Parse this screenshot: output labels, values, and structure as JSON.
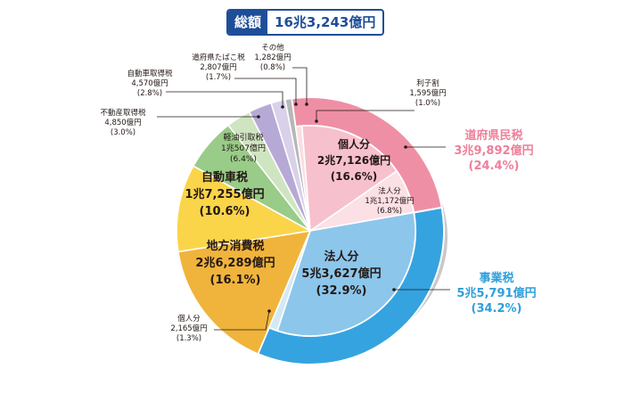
{
  "header": {
    "total_label": "総額",
    "total_value": "16兆3,243億円"
  },
  "chart_data": {
    "type": "pie",
    "unit": "億円",
    "groups": [
      {
        "id": "pref",
        "name": "道府県民税",
        "amount_label": "3兆9,892億円",
        "percent_label": "(24.4%)",
        "value": 39892,
        "color": "#ef8fa5",
        "label_color": "#ee7f9a"
      },
      {
        "id": "business",
        "name": "事業税",
        "amount_label": "5兆5,791億円",
        "percent_label": "(34.2%)",
        "value": 55791,
        "color": "#35a3e0",
        "label_color": "#2f9fdb"
      }
    ],
    "slices": [
      {
        "name": "利子割",
        "amount": "1,595億円",
        "percent": "(1.0%)",
        "value": 1595,
        "percent_value": 1.0,
        "group": "pref",
        "color": "#fbdde4"
      },
      {
        "name": "個人分",
        "amount": "2兆7,126億円",
        "percent": "(16.6%)",
        "value": 27126,
        "percent_value": 16.6,
        "group": "pref",
        "color": "#f7c0cd"
      },
      {
        "name": "法人分",
        "amount": "1兆1,172億円",
        "percent": "(6.8%)",
        "value": 11172,
        "percent_value": 6.8,
        "group": "pref",
        "color": "#fbe0e6"
      },
      {
        "name": "法人分",
        "amount": "5兆3,627億円",
        "percent": "(32.9%)",
        "value": 53627,
        "percent_value": 32.9,
        "group": "business",
        "color": "#8cc6eb"
      },
      {
        "name": "個人分",
        "amount": "2,165億円",
        "percent": "(1.3%)",
        "value": 2165,
        "percent_value": 1.3,
        "group": "business",
        "color": "#d3e9f6"
      },
      {
        "name": "地方消費税",
        "amount": "2兆6,289億円",
        "percent": "(16.1%)",
        "value": 26289,
        "percent_value": 16.1,
        "group": null,
        "color": "#f0b43c"
      },
      {
        "name": "自動車税",
        "amount": "1兆7,255億円",
        "percent": "(10.6%)",
        "value": 17255,
        "percent_value": 10.6,
        "group": null,
        "color": "#fad54a"
      },
      {
        "name": "軽油引取税",
        "amount": "1兆507億円",
        "percent": "(6.4%)",
        "value": 10507,
        "percent_value": 6.4,
        "group": null,
        "color": "#99cc88"
      },
      {
        "name": "不動産取得税",
        "amount": "4,850億円",
        "percent": "(3.0%)",
        "value": 4850,
        "percent_value": 3.0,
        "group": null,
        "color": "#cfe5c1"
      },
      {
        "name": "自動車取得税",
        "amount": "4,570億円",
        "percent": "(2.8%)",
        "value": 4570,
        "percent_value": 2.8,
        "group": null,
        "color": "#b6a9d6"
      },
      {
        "name": "道府県たばこ税",
        "amount": "2,807億円",
        "percent": "(1.7%)",
        "value": 2807,
        "percent_value": 1.7,
        "group": null,
        "color": "#d9d0ea"
      },
      {
        "name": "その他",
        "amount": "1,282億円",
        "percent": "(0.8%)",
        "value": 1282,
        "percent_value": 0.8,
        "group": null,
        "color": "#b7b7b7"
      }
    ]
  }
}
